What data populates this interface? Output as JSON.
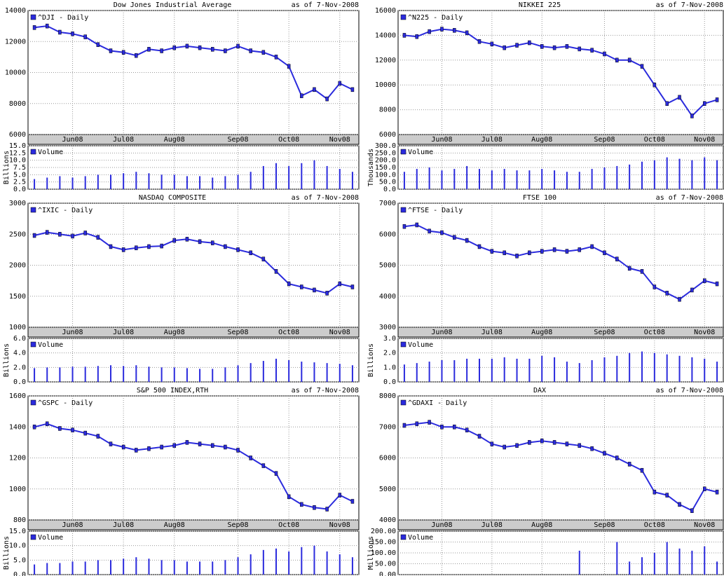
{
  "chart_data": [
    {
      "type": "line",
      "title": "Dow Jones Industrial Average",
      "as_of": "as of  7-Nov-2008",
      "categories": [
        null,
        null,
        null,
        "Jun08",
        null,
        null,
        null,
        "Jul08",
        null,
        null,
        null,
        "Aug08",
        null,
        null,
        null,
        null,
        "Sep08",
        null,
        null,
        null,
        "Oct08",
        null,
        null,
        null,
        "Nov08",
        null
      ],
      "ylim": [
        6000,
        14000
      ],
      "yticks": [
        6000,
        8000,
        10000,
        12000,
        14000
      ],
      "grid": true,
      "series": [
        {
          "name": "^DJI - Daily",
          "color": "#2b2bdd",
          "values": [
            12900,
            13000,
            12600,
            12500,
            12300,
            11800,
            11400,
            11300,
            11100,
            11500,
            11400,
            11600,
            11700,
            11600,
            11500,
            11400,
            11700,
            11400,
            11300,
            11000,
            10400,
            8500,
            8900,
            8300,
            9300,
            8900
          ]
        }
      ],
      "volume": {
        "name": "Volume",
        "axis_label": "Billions",
        "color": "#2b2bdd",
        "ylim": [
          0,
          15
        ],
        "yticks": [
          {
            "value": 0,
            "label": "0.0"
          },
          {
            "value": 2.5,
            "label": "2.5"
          },
          {
            "value": 5,
            "label": "5.0"
          },
          {
            "value": 7.5,
            "label": "7.5"
          },
          {
            "value": 10,
            "label": "10.0"
          },
          {
            "value": 12.5,
            "label": "12.5"
          },
          {
            "value": 15,
            "label": "15.0"
          }
        ],
        "values": [
          3.5,
          4,
          4.5,
          4,
          4.5,
          5,
          5,
          5.5,
          6,
          5.5,
          5,
          5,
          4.5,
          4.5,
          4,
          4.5,
          5,
          6,
          8,
          9,
          8,
          9,
          10,
          8,
          7,
          6
        ]
      }
    },
    {
      "type": "line",
      "title": "NIKKEI 225",
      "as_of": "as of  7-Nov-2008",
      "categories": [
        null,
        null,
        null,
        "Jun08",
        null,
        null,
        null,
        "Jul08",
        null,
        null,
        null,
        "Aug08",
        null,
        null,
        null,
        null,
        "Sep08",
        null,
        null,
        null,
        "Oct08",
        null,
        null,
        null,
        "Nov08",
        null
      ],
      "ylim": [
        6000,
        16000
      ],
      "yticks": [
        6000,
        8000,
        10000,
        12000,
        14000,
        16000
      ],
      "grid": true,
      "series": [
        {
          "name": "^N225 - Daily",
          "color": "#2b2bdd",
          "values": [
            14000,
            13900,
            14300,
            14500,
            14400,
            14200,
            13500,
            13300,
            13000,
            13200,
            13400,
            13100,
            13000,
            13100,
            12900,
            12800,
            12500,
            12000,
            12000,
            11500,
            10000,
            8500,
            9000,
            7500,
            8500,
            8800
          ]
        }
      ],
      "volume": {
        "name": "Volume",
        "axis_label": "Thousands",
        "color": "#2b2bdd",
        "ylim": [
          0,
          300
        ],
        "yticks": [
          {
            "value": 0,
            "label": "0.0"
          },
          {
            "value": 50,
            "label": "50.0"
          },
          {
            "value": 100,
            "label": "100.0"
          },
          {
            "value": 150,
            "label": "150.0"
          },
          {
            "value": 200,
            "label": "200.0"
          },
          {
            "value": 250,
            "label": "250.0"
          },
          {
            "value": 300,
            "label": "300.0"
          }
        ],
        "values": [
          120,
          140,
          150,
          130,
          140,
          160,
          140,
          130,
          140,
          130,
          130,
          140,
          130,
          120,
          120,
          140,
          150,
          160,
          170,
          190,
          200,
          220,
          210,
          200,
          220,
          200
        ]
      }
    },
    {
      "type": "line",
      "title": "NASDAQ COMPOSITE",
      "as_of": "as of  7-Nov-2008",
      "categories": [
        null,
        null,
        null,
        "Jun08",
        null,
        null,
        null,
        "Jul08",
        null,
        null,
        null,
        "Aug08",
        null,
        null,
        null,
        null,
        "Sep08",
        null,
        null,
        null,
        "Oct08",
        null,
        null,
        null,
        "Nov08",
        null
      ],
      "ylim": [
        1000,
        3000
      ],
      "yticks": [
        1000,
        1500,
        2000,
        2500,
        3000
      ],
      "grid": true,
      "series": [
        {
          "name": "^IXIC - Daily",
          "color": "#2b2bdd",
          "values": [
            2480,
            2530,
            2500,
            2470,
            2520,
            2450,
            2300,
            2250,
            2280,
            2300,
            2310,
            2400,
            2420,
            2380,
            2360,
            2300,
            2250,
            2200,
            2100,
            1900,
            1700,
            1650,
            1600,
            1550,
            1700,
            1650
          ]
        }
      ],
      "volume": {
        "name": "Volume",
        "axis_label": "Billions",
        "color": "#2b2bdd",
        "ylim": [
          0,
          6
        ],
        "yticks": [
          {
            "value": 0,
            "label": "0.0"
          },
          {
            "value": 2,
            "label": "2.0"
          },
          {
            "value": 4,
            "label": "4.0"
          },
          {
            "value": 6,
            "label": "6.0"
          }
        ],
        "values": [
          1.9,
          2.0,
          2.0,
          2.1,
          2.1,
          2.2,
          2.3,
          2.2,
          2.3,
          2.1,
          2.0,
          2.0,
          1.9,
          1.8,
          1.8,
          2.0,
          2.3,
          2.6,
          2.9,
          3.2,
          3.0,
          2.8,
          2.7,
          2.6,
          2.5,
          2.3
        ]
      }
    },
    {
      "type": "line",
      "title": "FTSE 100",
      "as_of": "as of  7-Nov-2008",
      "categories": [
        null,
        null,
        null,
        "Jun08",
        null,
        null,
        null,
        "Jul08",
        null,
        null,
        null,
        "Aug08",
        null,
        null,
        null,
        null,
        "Sep08",
        null,
        null,
        null,
        "Oct08",
        null,
        null,
        null,
        "Nov08",
        null
      ],
      "ylim": [
        3000,
        7000
      ],
      "yticks": [
        3000,
        4000,
        5000,
        6000,
        7000
      ],
      "grid": true,
      "series": [
        {
          "name": "^FTSE - Daily",
          "color": "#2b2bdd",
          "values": [
            6250,
            6300,
            6100,
            6050,
            5900,
            5800,
            5600,
            5450,
            5400,
            5300,
            5400,
            5450,
            5500,
            5450,
            5500,
            5600,
            5400,
            5200,
            4900,
            4800,
            4300,
            4100,
            3900,
            4200,
            4500,
            4400
          ]
        }
      ],
      "volume": {
        "name": "Volume",
        "axis_label": "Billions",
        "color": "#2b2bdd",
        "ylim": [
          0,
          3
        ],
        "yticks": [
          {
            "value": 0,
            "label": "0.0"
          },
          {
            "value": 1,
            "label": "1.0"
          },
          {
            "value": 2,
            "label": "2.0"
          },
          {
            "value": 3,
            "label": "3.0"
          }
        ],
        "values": [
          1.2,
          1.3,
          1.4,
          1.5,
          1.5,
          1.6,
          1.6,
          1.6,
          1.7,
          1.6,
          1.6,
          1.8,
          1.7,
          1.4,
          1.3,
          1.5,
          1.7,
          1.8,
          2.0,
          2.1,
          2.0,
          1.9,
          1.8,
          1.7,
          1.6,
          1.4
        ]
      }
    },
    {
      "type": "line",
      "title": "S&P 500 INDEX,RTH",
      "as_of": "as of  7-Nov-2008",
      "categories": [
        null,
        null,
        null,
        "Jun08",
        null,
        null,
        null,
        "Jul08",
        null,
        null,
        null,
        "Aug08",
        null,
        null,
        null,
        null,
        "Sep08",
        null,
        null,
        null,
        "Oct08",
        null,
        null,
        null,
        "Nov08",
        null
      ],
      "ylim": [
        800,
        1600
      ],
      "yticks": [
        800,
        1000,
        1200,
        1400,
        1600
      ],
      "grid": true,
      "series": [
        {
          "name": "^GSPC - Daily",
          "color": "#2b2bdd",
          "values": [
            1400,
            1420,
            1390,
            1380,
            1360,
            1340,
            1290,
            1270,
            1250,
            1260,
            1270,
            1280,
            1300,
            1290,
            1280,
            1270,
            1250,
            1200,
            1150,
            1100,
            950,
            900,
            880,
            870,
            960,
            920
          ]
        }
      ],
      "volume": {
        "name": "Volume",
        "axis_label": "Billions",
        "color": "#2b2bdd",
        "ylim": [
          0,
          15
        ],
        "yticks": [
          {
            "value": 0,
            "label": "0.0"
          },
          {
            "value": 5,
            "label": "5.0"
          },
          {
            "value": 10,
            "label": "10.0"
          },
          {
            "value": 15,
            "label": "15.0"
          }
        ],
        "values": [
          3.5,
          4,
          4,
          4.5,
          4.5,
          5,
          5,
          5.5,
          6,
          5.5,
          5,
          5,
          4.5,
          4.5,
          4.5,
          5,
          6,
          7,
          8.5,
          9,
          8,
          9.5,
          10,
          8,
          7,
          6
        ]
      }
    },
    {
      "type": "line",
      "title": "DAX",
      "as_of": "as of  7-Nov-2008",
      "categories": [
        null,
        null,
        null,
        "Jun08",
        null,
        null,
        null,
        "Jul08",
        null,
        null,
        null,
        "Aug08",
        null,
        null,
        null,
        null,
        "Sep08",
        null,
        null,
        null,
        "Oct08",
        null,
        null,
        null,
        "Nov08",
        null
      ],
      "ylim": [
        4000,
        8000
      ],
      "yticks": [
        4000,
        5000,
        6000,
        7000,
        8000
      ],
      "grid": true,
      "series": [
        {
          "name": "^GDAXI - Daily",
          "color": "#2b2bdd",
          "values": [
            7050,
            7100,
            7150,
            7000,
            7000,
            6900,
            6700,
            6450,
            6350,
            6400,
            6500,
            6550,
            6500,
            6450,
            6400,
            6300,
            6150,
            6000,
            5800,
            5600,
            4900,
            4800,
            4500,
            4300,
            5000,
            4900
          ]
        }
      ],
      "volume": {
        "name": "Volume",
        "axis_label": "Millions",
        "color": "#2b2bdd",
        "ylim": [
          0,
          200
        ],
        "yticks": [
          {
            "value": 0,
            "label": "0.00"
          },
          {
            "value": 50,
            "label": "50.00"
          },
          {
            "value": 100,
            "label": "100.00"
          },
          {
            "value": 150,
            "label": "150.00"
          },
          {
            "value": 200,
            "label": "200.00"
          }
        ],
        "values": [
          null,
          null,
          null,
          null,
          null,
          null,
          null,
          null,
          null,
          null,
          null,
          null,
          null,
          null,
          110,
          null,
          null,
          150,
          60,
          80,
          100,
          150,
          120,
          110,
          130,
          60
        ]
      }
    }
  ]
}
